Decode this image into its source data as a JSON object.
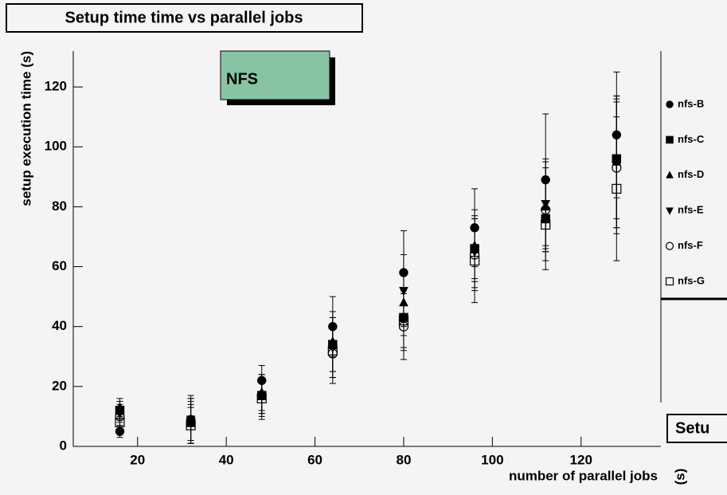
{
  "chart_data": {
    "type": "errorbar-scatter",
    "title": "Setup time time vs parallel jobs",
    "annotation": "NFS",
    "xlabel": "number of parallel jobs",
    "ylabel": "setup execution time (s)",
    "x": [
      16,
      32,
      48,
      64,
      80,
      96,
      112,
      128
    ],
    "xlim": [
      5.5,
      138
    ],
    "ylim": [
      0,
      132
    ],
    "xticks": [
      20,
      40,
      60,
      80,
      100,
      120
    ],
    "yticks": [
      0,
      20,
      40,
      60,
      80,
      100,
      120
    ],
    "series": [
      {
        "name": "nfs-B",
        "color": "#000000",
        "marker": "circle",
        "values": [
          5,
          9,
          22,
          40,
          58,
          73,
          89,
          104
        ],
        "errors": [
          2,
          8,
          5,
          10,
          14,
          13,
          22,
          21
        ]
      },
      {
        "name": "nfs-C",
        "color": "#000000",
        "marker": "square",
        "values": [
          12,
          8,
          17,
          34,
          43,
          66,
          76,
          96
        ],
        "errors": [
          3,
          6,
          6,
          9,
          10,
          10,
          14,
          20
        ]
      },
      {
        "name": "nfs-D",
        "color": "#000000",
        "marker": "triangle-up",
        "values": [
          13,
          9,
          18,
          35,
          48,
          67,
          80,
          95
        ],
        "errors": [
          3,
          7,
          6,
          10,
          11,
          12,
          15,
          22
        ]
      },
      {
        "name": "nfs-E",
        "color": "#000000",
        "marker": "triangle-down",
        "values": [
          11,
          9,
          17,
          33,
          52,
          65,
          81,
          95
        ],
        "errors": [
          3,
          7,
          6,
          10,
          12,
          12,
          15,
          22
        ]
      },
      {
        "name": "nfs-F",
        "color": "#000000",
        "marker": "circle-open",
        "values": [
          10,
          8,
          17,
          31,
          40,
          64,
          79,
          93
        ],
        "errors": [
          3,
          7,
          7,
          10,
          11,
          12,
          14,
          22
        ]
      },
      {
        "name": "nfs-G",
        "color": "#000000",
        "marker": "square-open",
        "values": [
          8,
          7,
          16,
          32,
          42,
          62,
          74,
          86
        ],
        "errors": [
          3,
          6,
          7,
          9,
          10,
          14,
          15,
          24
        ]
      }
    ]
  },
  "other_pad": {
    "title_fragment": "Setu",
    "ylabel_fragment": "(s)"
  }
}
